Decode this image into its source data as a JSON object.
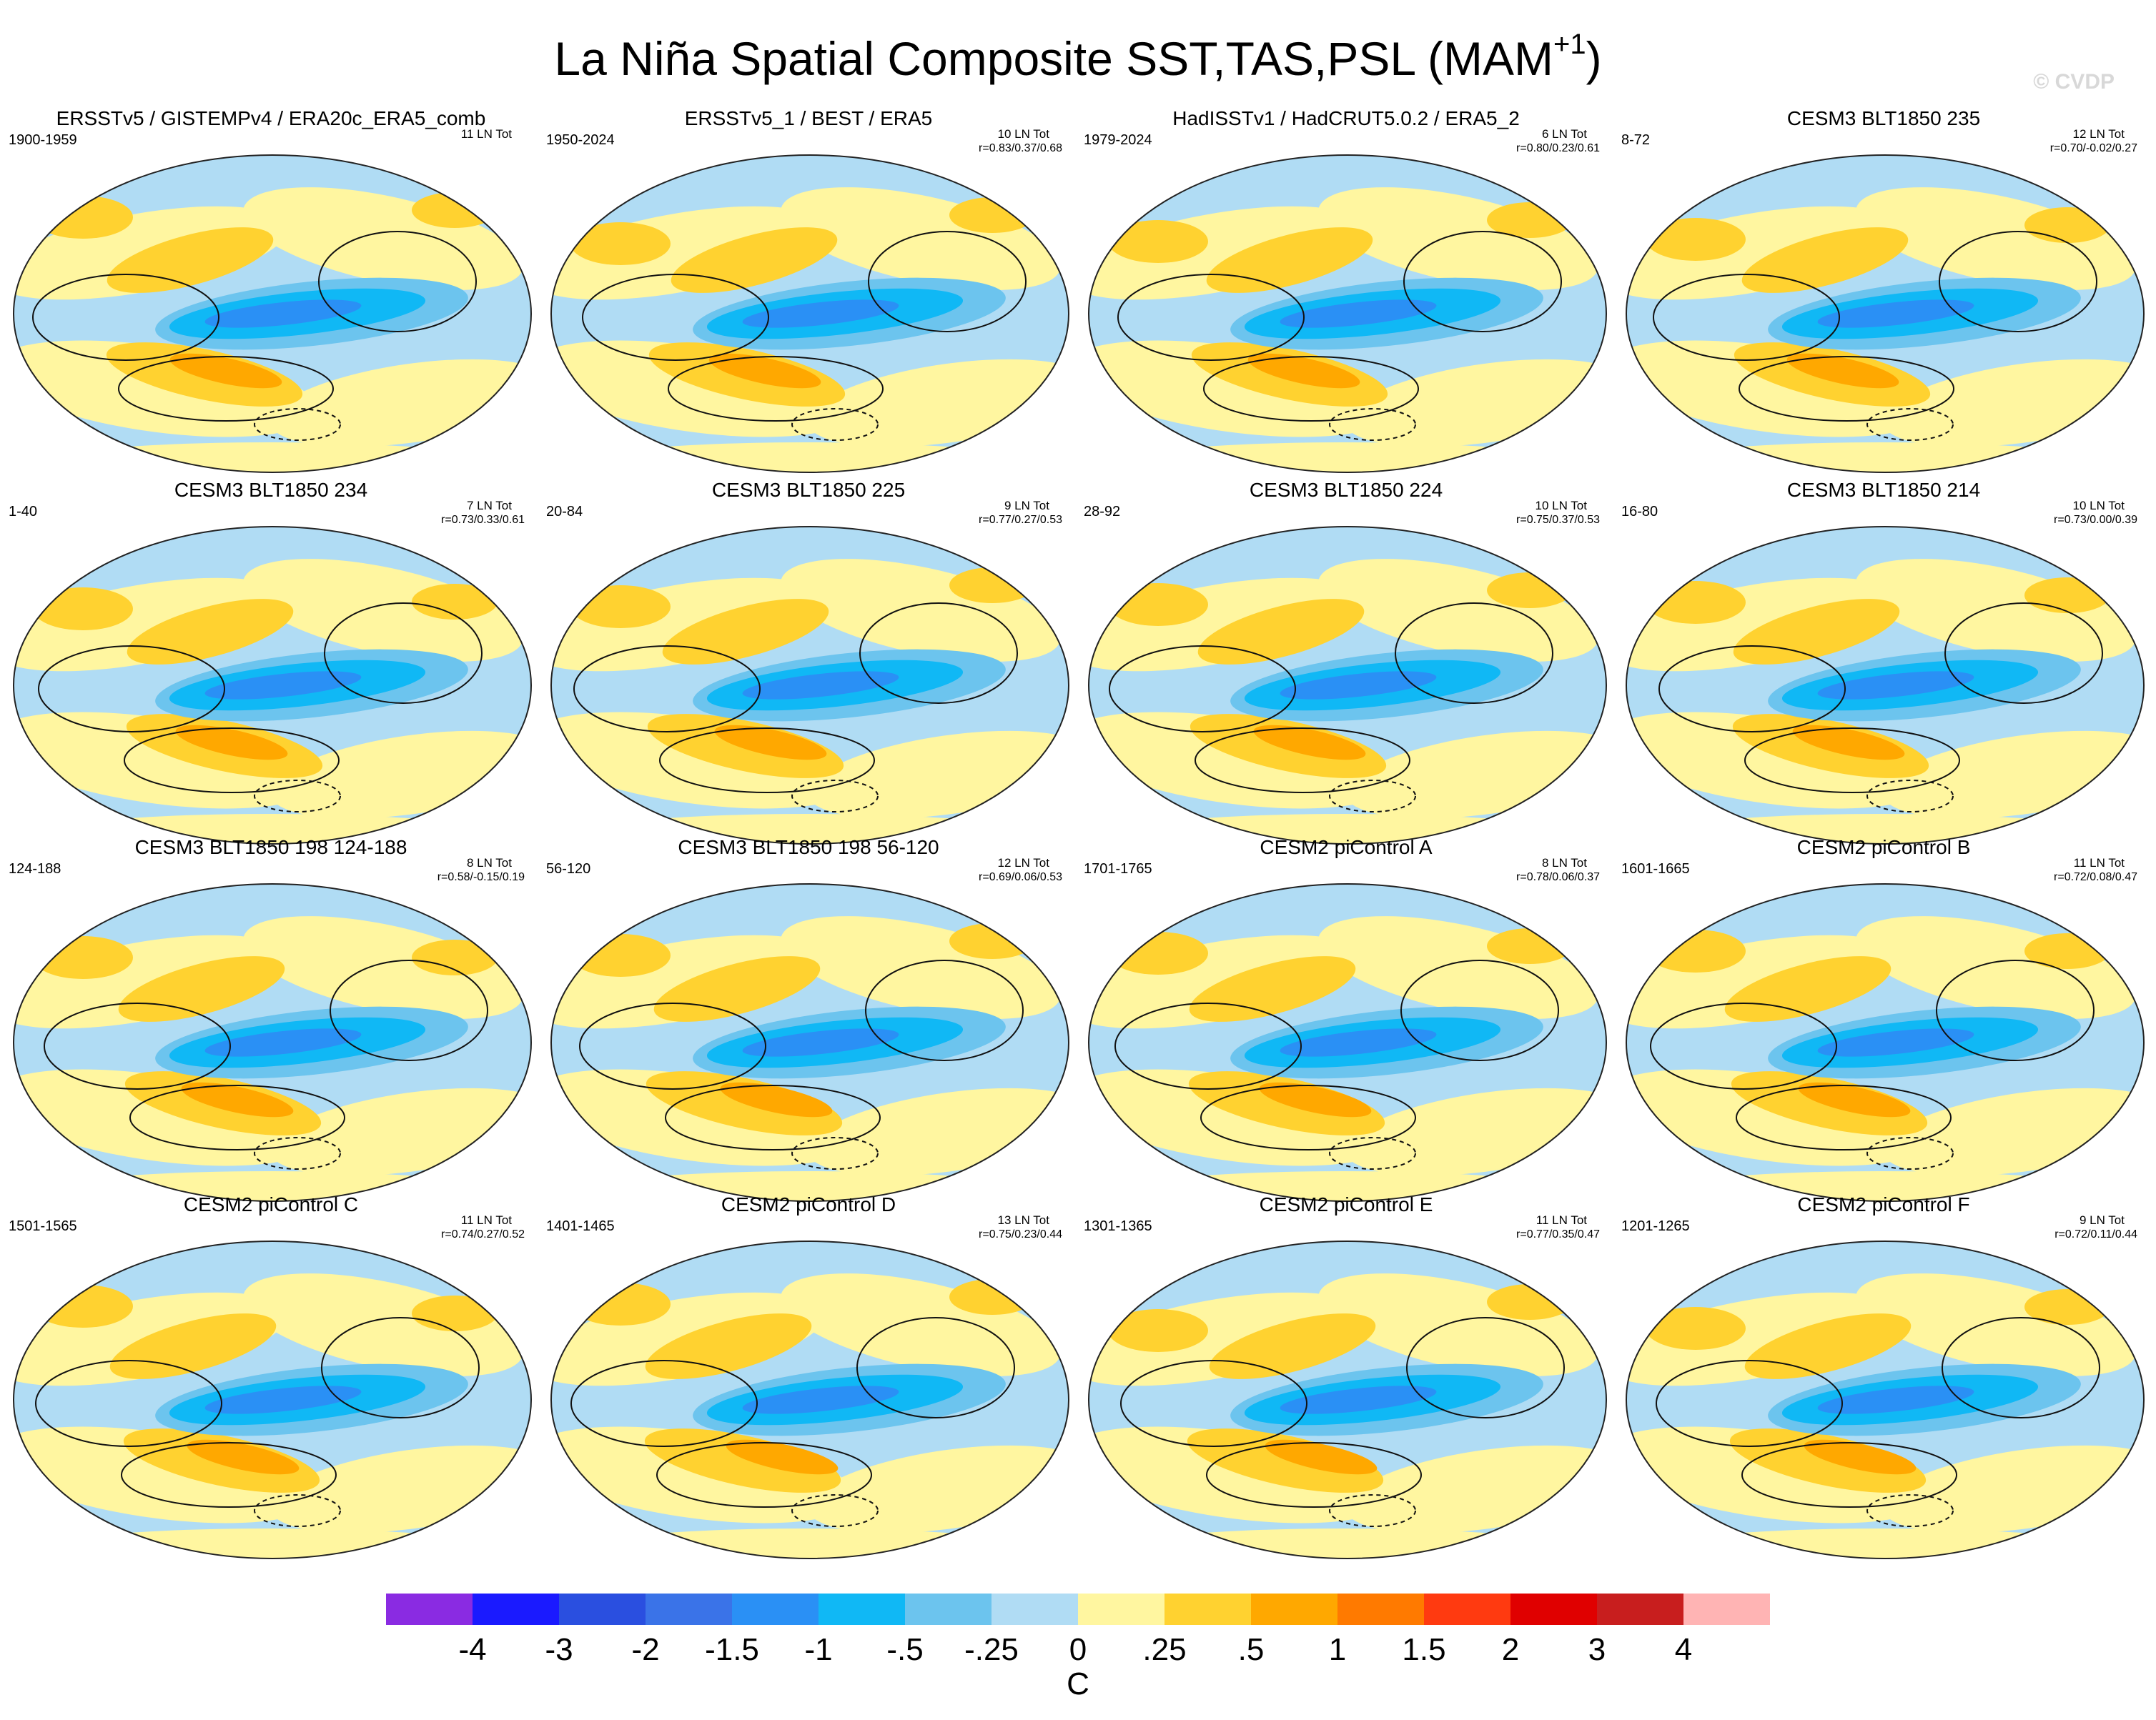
{
  "title": {
    "main": "La Niña Spatial Composite SST,TAS,PSL (MAM",
    "sup": "+1",
    "close": ")"
  },
  "watermark": "© CVDP",
  "panels": [
    {
      "title": "ERSSTv5 / GISTEMPv4 / ERA20c_ERA5_comb",
      "years": "1900-1959",
      "count": "11 LN Tot",
      "stats": ""
    },
    {
      "title": "ERSSTv5_1 / BEST / ERA5",
      "years": "1950-2024",
      "count": "10 LN Tot",
      "stats": "r=0.83/0.37/0.68"
    },
    {
      "title": "HadISSTv1 / HadCRUT5.0.2 / ERA5_2",
      "years": "1979-2024",
      "count": "6 LN Tot",
      "stats": "r=0.80/0.23/0.61"
    },
    {
      "title": "CESM3 BLT1850 235",
      "years": "8-72",
      "count": "12 LN Tot",
      "stats": "r=0.70/-0.02/0.27"
    },
    {
      "title": "CESM3 BLT1850 234",
      "years": "1-40",
      "count": "7 LN Tot",
      "stats": "r=0.73/0.33/0.61"
    },
    {
      "title": "CESM3 BLT1850 225",
      "years": "20-84",
      "count": "9 LN Tot",
      "stats": "r=0.77/0.27/0.53"
    },
    {
      "title": "CESM3 BLT1850 224",
      "years": "28-92",
      "count": "10 LN Tot",
      "stats": "r=0.75/0.37/0.53"
    },
    {
      "title": "CESM3 BLT1850 214",
      "years": "16-80",
      "count": "10 LN Tot",
      "stats": "r=0.73/0.00/0.39"
    },
    {
      "title": "CESM3 BLT1850 198 124-188",
      "years": "124-188",
      "count": "8 LN Tot",
      "stats": "r=0.58/-0.15/0.19"
    },
    {
      "title": "CESM3 BLT1850 198 56-120",
      "years": "56-120",
      "count": "12 LN Tot",
      "stats": "r=0.69/0.06/0.53"
    },
    {
      "title": "CESM2 piControl A",
      "years": "1701-1765",
      "count": "8 LN Tot",
      "stats": "r=0.78/0.06/0.37"
    },
    {
      "title": "CESM2 piControl B",
      "years": "1601-1665",
      "count": "11 LN Tot",
      "stats": "r=0.72/0.08/0.47"
    },
    {
      "title": "CESM2 piControl C",
      "years": "1501-1565",
      "count": "11 LN Tot",
      "stats": "r=0.74/0.27/0.52"
    },
    {
      "title": "CESM2 piControl D",
      "years": "1401-1465",
      "count": "13 LN Tot",
      "stats": "r=0.75/0.23/0.44"
    },
    {
      "title": "CESM2 piControl E",
      "years": "1301-1365",
      "count": "11 LN Tot",
      "stats": "r=0.77/0.35/0.47"
    },
    {
      "title": "CESM2 piControl F",
      "years": "1201-1265",
      "count": "9 LN Tot",
      "stats": "r=0.72/0.11/0.44"
    }
  ],
  "colorbar": {
    "colors": [
      "#8a2be2",
      "#1a1aff",
      "#2a4fe0",
      "#3a73e8",
      "#2a90f5",
      "#10b8f5",
      "#6cc4ee",
      "#b0dcf4",
      "#fff6a0",
      "#ffd230",
      "#ffa800",
      "#ff7a00",
      "#ff3a10",
      "#e00000",
      "#c81e1e",
      "#ffb4b4"
    ],
    "labels": [
      "-4",
      "-3",
      "-2",
      "-1.5",
      "-1",
      "-.5",
      "-.25",
      "0",
      ".25",
      ".5",
      "1",
      "1.5",
      "2",
      "3",
      "4"
    ],
    "unit": "C"
  }
}
